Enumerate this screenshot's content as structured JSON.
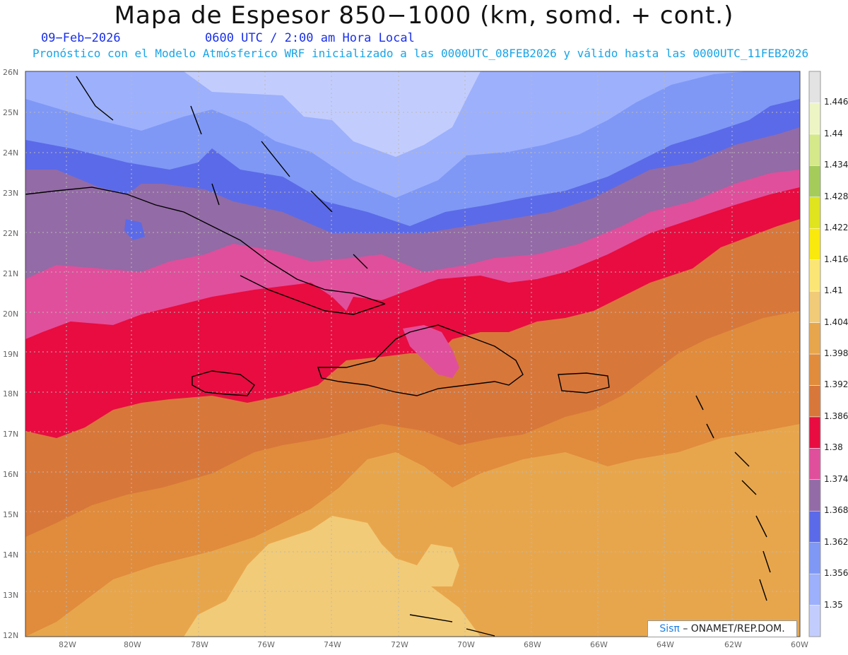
{
  "title": "Mapa de Espesor 850−1000 (km, somd. + cont.)",
  "date": "09−Feb−2026",
  "time": "0600 UTC / 2:00 am Hora Local",
  "subtitle": "Pronóstico con el Modelo Atmósferico WRF inicializado a las 0000UTC_08FEB2026 y válido hasta las  0000UTC_11FEB2026",
  "credit": {
    "brand": "Sisπ",
    "text": "– ONAMET/REP.DOM."
  },
  "colorbar": {
    "levels": [
      "1.35",
      "1.356",
      "1.362",
      "1.368",
      "1.374",
      "1.38",
      "1.386",
      "1.392",
      "1.398",
      "1.404",
      "1.41",
      "1.416",
      "1.422",
      "1.428",
      "1.434",
      "1.44",
      "1.446"
    ],
    "colors": [
      "#c3cdfd",
      "#9db0fc",
      "#7f98f6",
      "#5b6ae8",
      "#936ba6",
      "#e04f9b",
      "#e80c40",
      "#d8773a",
      "#e08c3c",
      "#e8a64c",
      "#f1cb78",
      "#fbe675",
      "#f9e90d",
      "#dfe41f",
      "#a5cc5a",
      "#d5e98b",
      "#eef5c5",
      "#e3e3e3"
    ]
  },
  "lat_labels": [
    "26N",
    "25N",
    "24N",
    "23N",
    "22N",
    "21N",
    "20N",
    "19N",
    "18N",
    "17N",
    "16N",
    "15N",
    "14N",
    "13N",
    "12N"
  ],
  "lon_labels": [
    "82W",
    "80W",
    "78W",
    "76W",
    "74W",
    "72W",
    "70W",
    "68W",
    "66W",
    "64W",
    "62W",
    "60W"
  ]
}
